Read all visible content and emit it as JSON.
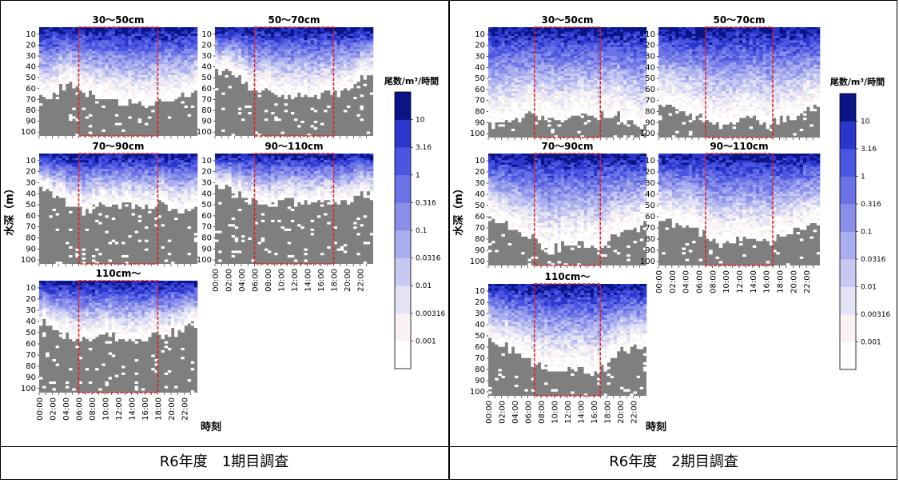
{
  "footer": {
    "left_caption": "R6年度　1期目調査",
    "right_caption": "R6年度　2期目調査"
  },
  "colors": {
    "no_data": "#7f7f7f",
    "highlight_box": "#e02020",
    "scale": [
      "#ffffff",
      "#faf2f2",
      "#e3e3f5",
      "#c7c9f2",
      "#a9aeef",
      "#8a90ea",
      "#6a73e6",
      "#4a56e2",
      "#2a36cc",
      "#0a1486"
    ]
  },
  "chart_data": [
    {
      "type": "heatmap",
      "survey": "R6年度　1期目調査",
      "xlabel": "時刻",
      "ylabel": "水深（m）",
      "y_ticks": [
        "10",
        "20",
        "30",
        "40",
        "50",
        "60",
        "70",
        "80",
        "90",
        "100"
      ],
      "x_ticks": [
        "00:00",
        "02:00",
        "04:00",
        "06:00",
        "08:00",
        "10:00",
        "12:00",
        "14:00",
        "16:00",
        "18:00",
        "20:00",
        "22:00"
      ],
      "ylim": [
        0,
        100
      ],
      "xlim": [
        "00:00",
        "24:00"
      ],
      "colorbar": {
        "title": "尾数/m³/時間",
        "ticks": [
          "10",
          "3.16",
          "1",
          "0.316",
          "0.1",
          "0.0316",
          "0.01",
          "0.00316",
          "0.001"
        ],
        "scale": "log"
      },
      "panels": [
        {
          "label": "30～50cm",
          "highlight": [
            "06:00",
            "18:00"
          ],
          "seabed_depth": [
            62,
            62,
            58,
            55,
            50,
            55,
            60,
            62,
            65,
            66,
            66,
            68,
            69,
            70,
            71,
            72,
            72,
            71,
            70,
            68,
            66,
            64,
            63,
            62
          ]
        },
        {
          "label": "50～70cm",
          "highlight": [
            "06:00",
            "18:00"
          ],
          "seabed_depth": [
            38,
            40,
            42,
            45,
            50,
            55,
            58,
            60,
            62,
            62,
            63,
            63,
            62,
            62,
            63,
            63,
            62,
            61,
            60,
            58,
            55,
            52,
            48,
            45
          ]
        },
        {
          "label": "70～90cm",
          "highlight": [
            "06:00",
            "18:00"
          ],
          "seabed_depth": [
            32,
            34,
            38,
            42,
            48,
            50,
            52,
            50,
            48,
            46,
            47,
            48,
            47,
            46,
            47,
            48,
            47,
            46,
            46,
            48,
            50,
            52,
            50,
            48
          ]
        },
        {
          "label": "90～110cm",
          "highlight": [
            "06:00",
            "18:00"
          ],
          "seabed_depth": [
            30,
            30,
            33,
            36,
            40,
            42,
            44,
            44,
            45,
            45,
            44,
            43,
            44,
            45,
            44,
            44,
            43,
            44,
            45,
            44,
            42,
            40,
            38,
            36
          ]
        },
        {
          "label": "110cm～",
          "highlight": [
            "06:00",
            "18:00"
          ],
          "seabed_depth": [
            38,
            40,
            44,
            46,
            48,
            50,
            52,
            52,
            52,
            51,
            50,
            50,
            50,
            50,
            51,
            51,
            50,
            50,
            50,
            48,
            46,
            44,
            42,
            40
          ]
        }
      ]
    },
    {
      "type": "heatmap",
      "survey": "R6年度　2期目調査",
      "xlabel": "時刻",
      "ylabel": "水深（m）",
      "y_ticks": [
        "10",
        "20",
        "30",
        "40",
        "50",
        "60",
        "70",
        "80",
        "90",
        "100"
      ],
      "x_ticks": [
        "00:00",
        "02:00",
        "04:00",
        "06:00",
        "08:00",
        "10:00",
        "12:00",
        "14:00",
        "16:00",
        "18:00",
        "20:00",
        "22:00"
      ],
      "ylim": [
        0,
        100
      ],
      "xlim": [
        "00:00",
        "24:00"
      ],
      "colorbar": {
        "title": "尾数/m³/時間",
        "ticks": [
          "10",
          "3.16",
          "1",
          "0.316",
          "0.1",
          "0.0316",
          "0.01",
          "0.00316",
          "0.001"
        ],
        "scale": "log"
      },
      "panels": [
        {
          "label": "30～50cm",
          "highlight": [
            "07:00",
            "17:00"
          ],
          "seabed_depth": [
            90,
            88,
            86,
            84,
            82,
            80,
            78,
            80,
            82,
            84,
            84,
            82,
            80,
            78,
            80,
            82,
            84,
            80,
            78,
            80,
            84,
            86,
            88,
            90
          ]
        },
        {
          "label": "50～70cm",
          "highlight": [
            "07:00",
            "17:00"
          ],
          "seabed_depth": [
            70,
            72,
            74,
            76,
            78,
            80,
            82,
            84,
            86,
            88,
            88,
            86,
            84,
            82,
            84,
            86,
            88,
            86,
            84,
            82,
            80,
            78,
            76,
            74
          ]
        },
        {
          "label": "70～90cm",
          "highlight": [
            "07:00",
            "17:00"
          ],
          "seabed_depth": [
            60,
            62,
            64,
            66,
            68,
            72,
            76,
            80,
            84,
            86,
            84,
            82,
            80,
            80,
            82,
            84,
            86,
            82,
            76,
            72,
            68,
            66,
            64,
            62
          ]
        },
        {
          "label": "90～110cm",
          "highlight": [
            "07:00",
            "17:00"
          ],
          "seabed_depth": [
            58,
            60,
            62,
            64,
            66,
            68,
            72,
            76,
            78,
            80,
            80,
            78,
            76,
            76,
            78,
            80,
            80,
            76,
            72,
            70,
            68,
            66,
            64,
            62
          ]
        },
        {
          "label": "110cm～",
          "highlight": [
            "07:00",
            "17:00"
          ],
          "seabed_depth": [
            52,
            54,
            56,
            58,
            60,
            64,
            70,
            74,
            76,
            78,
            78,
            76,
            74,
            74,
            76,
            78,
            78,
            74,
            68,
            64,
            60,
            58,
            56,
            54
          ]
        }
      ]
    }
  ]
}
